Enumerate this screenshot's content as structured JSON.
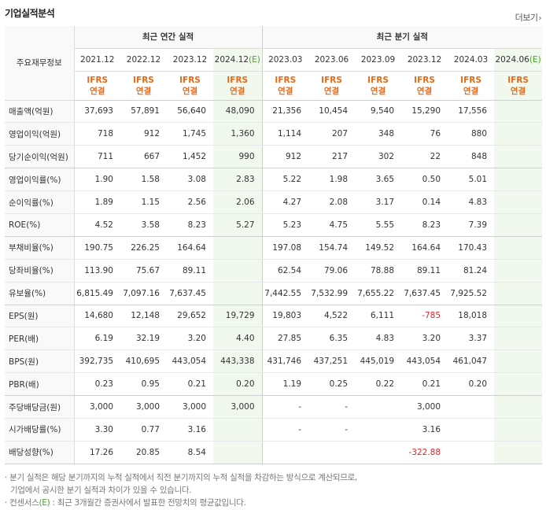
{
  "section_title": "기업실적분석",
  "more_label": "더보기",
  "more_icon": "chevron-right-icon",
  "corner_label": "주요재무정보",
  "annual_header": "최근 연간 실적",
  "quarter_header": "최근 분기 실적",
  "annual_periods": [
    "2021.12",
    "2022.12",
    "2023.12",
    "2024.12"
  ],
  "annual_estimate_suffix": "(E)",
  "quarter_periods": [
    "2023.03",
    "2023.06",
    "2023.09",
    "2023.12",
    "2024.03",
    "2024.06"
  ],
  "quarter_estimate_suffix": "(E)",
  "ifrs_top": "IFRS",
  "ifrs_bottom": "연결",
  "rows": [
    {
      "label": "매출액(억원)",
      "values": [
        "37,693",
        "57,891",
        "56,640",
        "48,090",
        "21,356",
        "10,454",
        "9,540",
        "15,290",
        "17,556",
        ""
      ]
    },
    {
      "label": "영업이익(억원)",
      "values": [
        "718",
        "912",
        "1,745",
        "1,360",
        "1,114",
        "207",
        "348",
        "76",
        "880",
        ""
      ]
    },
    {
      "label": "당기순이익(억원)",
      "values": [
        "711",
        "667",
        "1,452",
        "990",
        "912",
        "217",
        "302",
        "22",
        "848",
        ""
      ]
    },
    {
      "label": "영업이익률(%)",
      "values": [
        "1.90",
        "1.58",
        "3.08",
        "2.83",
        "5.22",
        "1.98",
        "3.65",
        "0.50",
        "5.01",
        ""
      ]
    },
    {
      "label": "순이익률(%)",
      "values": [
        "1.89",
        "1.15",
        "2.56",
        "2.06",
        "4.27",
        "2.08",
        "3.17",
        "0.14",
        "4.83",
        ""
      ]
    },
    {
      "label": "ROE(%)",
      "values": [
        "4.52",
        "3.58",
        "8.23",
        "5.27",
        "5.23",
        "4.75",
        "5.55",
        "8.23",
        "7.39",
        ""
      ]
    },
    {
      "label": "부채비율(%)",
      "values": [
        "190.75",
        "226.25",
        "164.64",
        "",
        "197.08",
        "154.74",
        "149.52",
        "164.64",
        "170.43",
        ""
      ]
    },
    {
      "label": "당좌비율(%)",
      "values": [
        "113.90",
        "75.67",
        "89.11",
        "",
        "62.54",
        "79.06",
        "78.88",
        "89.11",
        "81.24",
        ""
      ]
    },
    {
      "label": "유보율(%)",
      "values": [
        "6,815.49",
        "7,097.16",
        "7,637.45",
        "",
        "7,442.55",
        "7,532.99",
        "7,655.22",
        "7,637.45",
        "7,925.52",
        ""
      ]
    },
    {
      "label": "EPS(원)",
      "values": [
        "14,680",
        "12,148",
        "29,652",
        "19,729",
        "19,803",
        "4,522",
        "6,111",
        "-785",
        "18,018",
        ""
      ]
    },
    {
      "label": "PER(배)",
      "values": [
        "6.19",
        "32.19",
        "3.20",
        "4.40",
        "27.85",
        "6.35",
        "4.83",
        "3.20",
        "3.37",
        ""
      ]
    },
    {
      "label": "BPS(원)",
      "values": [
        "392,735",
        "410,695",
        "443,054",
        "443,338",
        "431,746",
        "437,251",
        "445,019",
        "443,054",
        "461,047",
        ""
      ]
    },
    {
      "label": "PBR(배)",
      "values": [
        "0.23",
        "0.95",
        "0.21",
        "0.20",
        "1.19",
        "0.25",
        "0.22",
        "0.21",
        "0.20",
        ""
      ]
    },
    {
      "label": "주당배당금(원)",
      "values": [
        "3,000",
        "3,000",
        "3,000",
        "3,000",
        "-",
        "-",
        "",
        "3,000",
        "",
        ""
      ]
    },
    {
      "label": "시가배당률(%)",
      "values": [
        "3.30",
        "0.77",
        "3.16",
        "",
        "-",
        "-",
        "",
        "3.16",
        "",
        ""
      ]
    },
    {
      "label": "배당성향(%)",
      "values": [
        "17.26",
        "20.85",
        "8.54",
        "",
        "",
        "",
        "",
        "-322.88",
        "",
        ""
      ]
    }
  ],
  "notes": {
    "line1": "· 분기 실적은 해당 분기까지의 누적 실적에서 직전 분기까지의 누적 실적을 차감하는 방식으로 계산되므로,",
    "line2": "기업에서 공시한 분기 실적과 차이가 있을 수 있습니다.",
    "line3_prefix": "· 컨센서스",
    "line3_e": "(E)",
    "line3_suffix": " : 최근 3개월간 증권사에서 발표한 전망치의 평균값입니다."
  },
  "colors": {
    "ifrs": "#e56a17",
    "estimate_bg": "#f1f9ef",
    "estimate_text": "#4aa02c",
    "negative": "#e0252b"
  }
}
